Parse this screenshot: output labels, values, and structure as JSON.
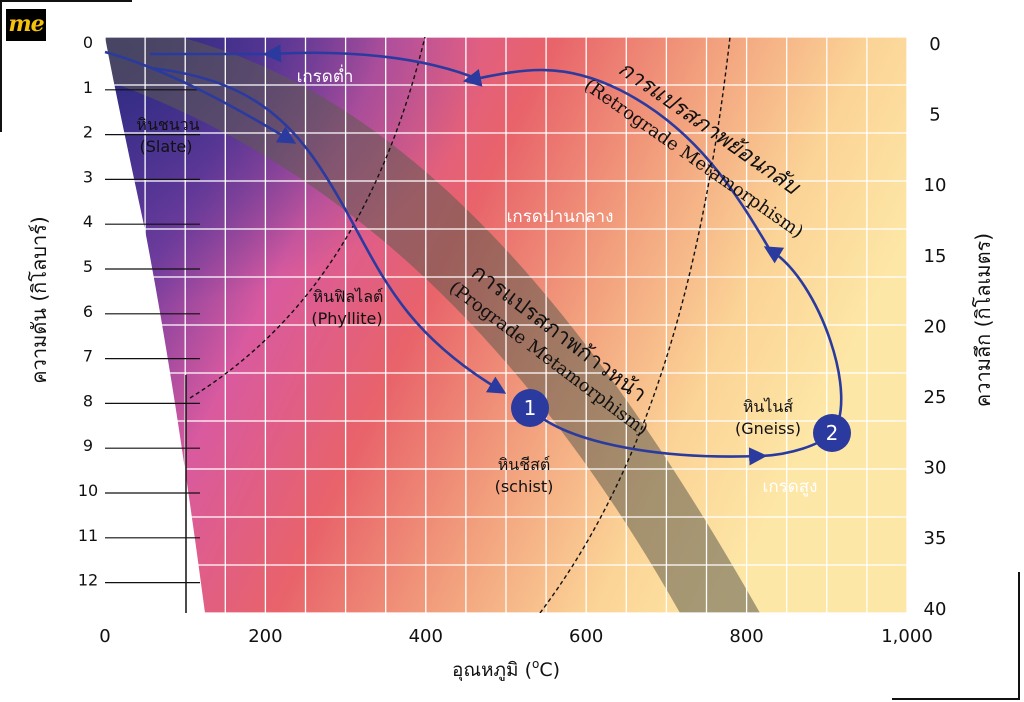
{
  "logo": "me",
  "left_axis": {
    "title": "ความดัน (กิโลบาร์)",
    "ticks": [
      "0",
      "1",
      "2",
      "3",
      "4",
      "5",
      "6",
      "7",
      "8",
      "9",
      "10",
      "11",
      "12"
    ]
  },
  "right_axis": {
    "title": "ความลึก (กิโลเมตร)",
    "ticks": [
      "0",
      "5",
      "10",
      "15",
      "20",
      "25",
      "30",
      "35",
      "40"
    ]
  },
  "bottom_axis": {
    "title": "อุณหภูมิ (",
    "title_unit": "C)",
    "title_degree": "o",
    "ticks": [
      "0",
      "200",
      "400",
      "600",
      "800",
      "1,000"
    ]
  },
  "labels": {
    "low_grade": "เกรดต่ำ",
    "medium_grade": "เกรดปานกลาง",
    "high_grade": "เกรดสูง",
    "slate_th": "หินชนวน",
    "slate_en": "(Slate)",
    "phyllite_th": "หินฟิลไลต์",
    "phyllite_en": "(Phyllite)",
    "schist_th": "หินชีสต์",
    "schist_en": "(schist)",
    "gneiss_th": "หินไนส์",
    "gneiss_en": "(Gneiss)",
    "prograde_th": "การแปรสภาพก้าวหน้า",
    "prograde_en": "(Prograde Metamorphism)",
    "retrograde_th": "การแปรสภาพย้อนกลับ",
    "retrograde_en": "(Retrograde Metamorphism)",
    "marker_1": "1",
    "marker_2": "2"
  },
  "colors": {
    "path": "#2a3a9e",
    "marker": "#2a3a9e",
    "band": "#6b6b55",
    "low_grade": "#4a2f8f",
    "medium_grade": "#e8636a",
    "high_grade": "#fde7a6"
  }
}
